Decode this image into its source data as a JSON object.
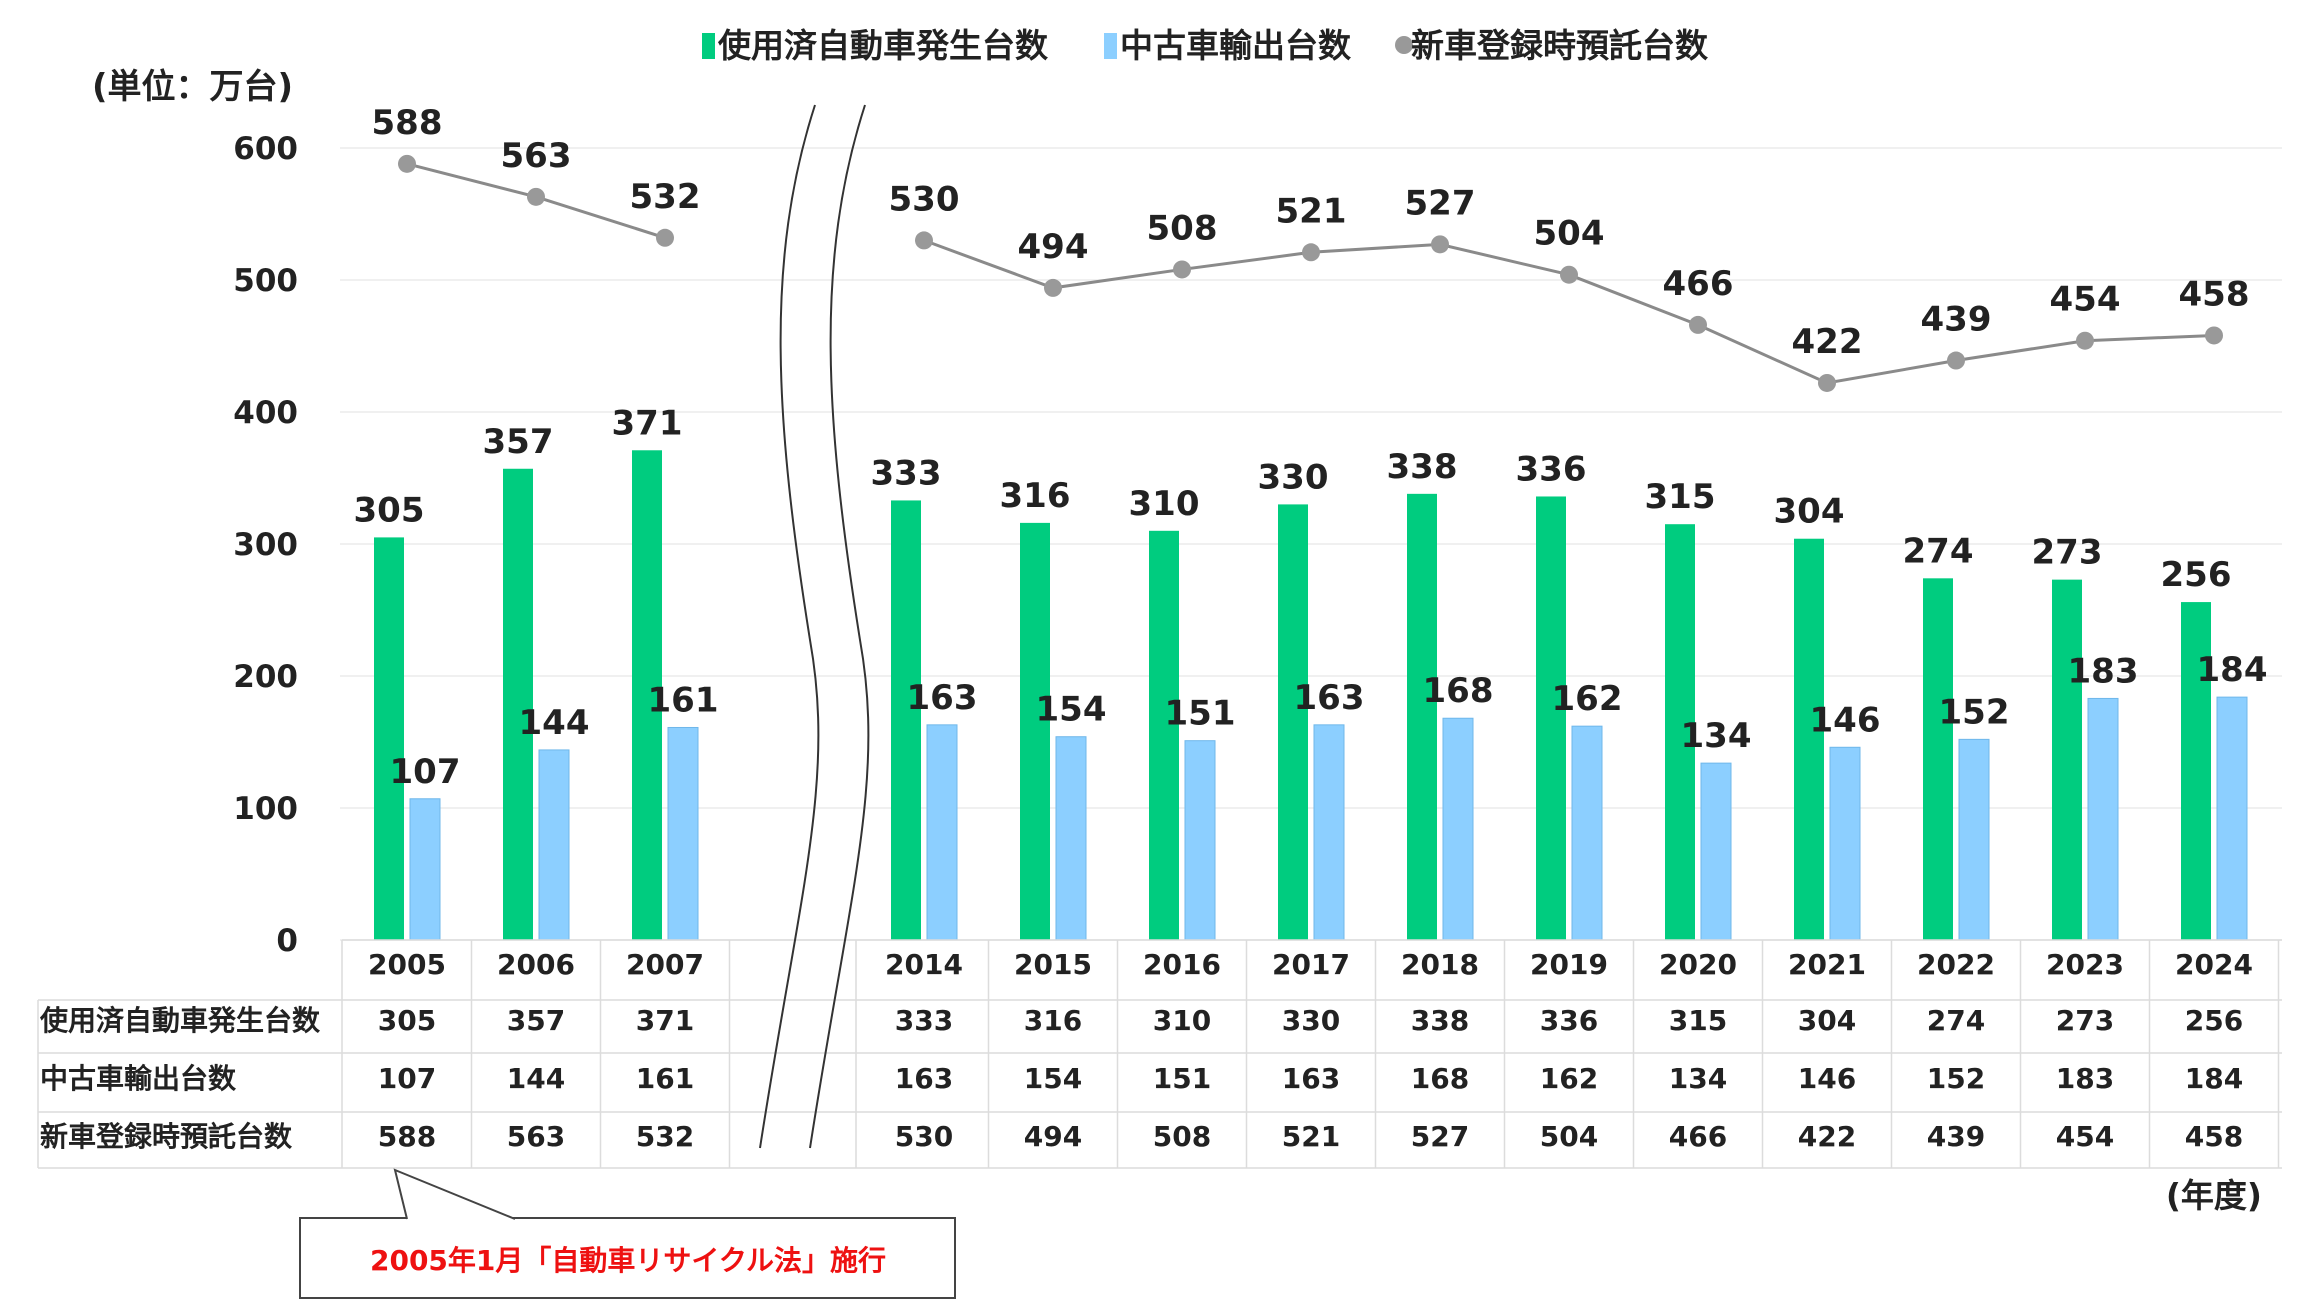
{
  "legend": [
    {
      "label": "使用済自動車発生台数",
      "color": "#00cc7f",
      "shape": "square"
    },
    {
      "label": "中古車輸出台数",
      "color": "#8ccfff",
      "shape": "square"
    },
    {
      "label": "新車登録時預託台数",
      "color": "#999999",
      "shape": "circle"
    }
  ],
  "unit_label": "(単位：万台)",
  "x_unit_label": "(年度)",
  "note": {
    "text": "2005年1月「自動車リサイクル法」施行",
    "color": "#ee1111"
  },
  "chart_data": {
    "type": "bar",
    "categories": [
      "2005",
      "2006",
      "2007",
      "2014",
      "2015",
      "2016",
      "2017",
      "2018",
      "2019",
      "2020",
      "2021",
      "2022",
      "2023",
      "2024"
    ],
    "axis_break_after": "2007",
    "ylim": [
      0,
      600
    ],
    "yticks": [
      0,
      100,
      200,
      300,
      400,
      500,
      600
    ],
    "grid": true,
    "legend_position": "top",
    "series": [
      {
        "name": "使用済自動車発生台数",
        "type": "bar",
        "color": "#00cc7f",
        "values": [
          305,
          357,
          371,
          333,
          316,
          310,
          330,
          338,
          336,
          315,
          304,
          274,
          273,
          256
        ]
      },
      {
        "name": "中古車輸出台数",
        "type": "bar",
        "color": "#8ccfff",
        "values": [
          107,
          144,
          161,
          163,
          154,
          151,
          163,
          168,
          162,
          134,
          146,
          152,
          183,
          184
        ]
      },
      {
        "name": "新車登録時預託台数",
        "type": "line",
        "color": "#999999",
        "values": [
          588,
          563,
          532,
          530,
          494,
          508,
          521,
          527,
          504,
          466,
          422,
          439,
          454,
          458
        ]
      }
    ]
  }
}
